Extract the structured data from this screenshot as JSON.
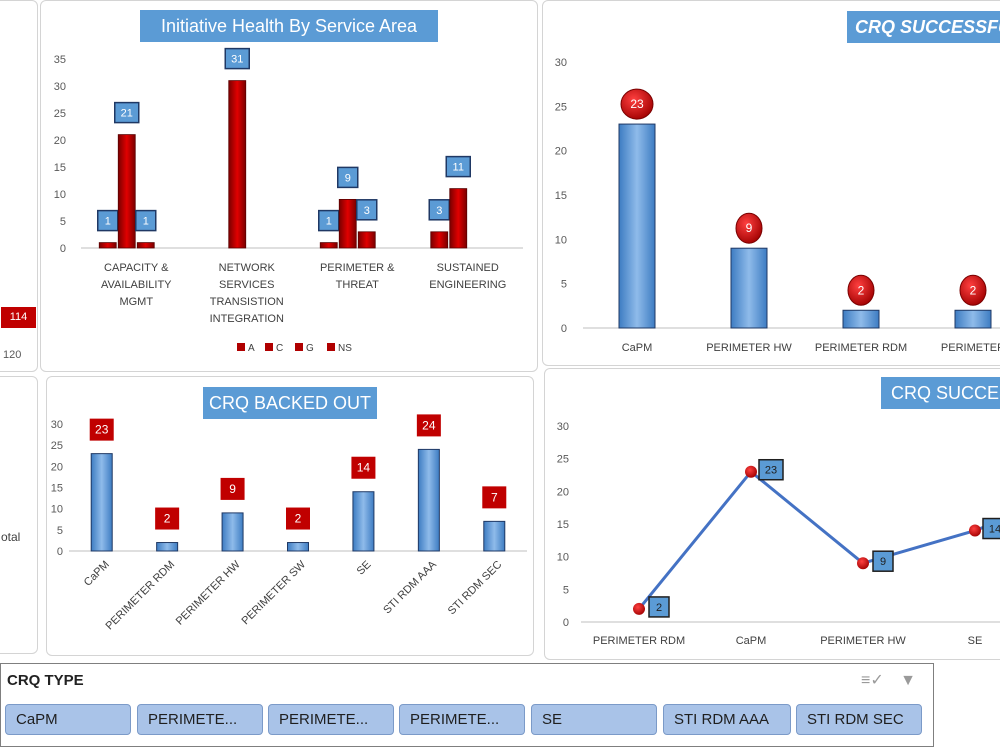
{
  "left_stub": {
    "badge_value": "114",
    "axis_tick": "120",
    "total_fragment": "otal"
  },
  "colors": {
    "title_blue": "#5b9bd5",
    "bar_blue": "#5b9bd5",
    "bar_red": "#c00000",
    "badge_red": "#c00000",
    "slicer_button": "#a9c3e8"
  },
  "slicer": {
    "header": "CRQ TYPE",
    "multi_select_icon": "multi-select-icon",
    "clear_filter_icon": "clear-filter-icon",
    "buttons": [
      "CaPM",
      "PERIMETE...",
      "PERIMETE...",
      "PERIMETE...",
      "SE",
      "STI RDM AAA",
      "STI RDM SEC"
    ]
  },
  "chart_data": [
    {
      "id": "health",
      "type": "bar",
      "title": "Initiative Health By Service Area",
      "categories": [
        "CAPACITY & AVAILABILITY MGMT",
        "NETWORK SERVICES TRANSISTION INTEGRATION",
        "PERIMETER & THREAT",
        "SUSTAINED ENGINEERING"
      ],
      "series": [
        {
          "name": "A",
          "values": [
            1,
            0,
            1,
            3
          ]
        },
        {
          "name": "C",
          "values": [
            21,
            31,
            9,
            11
          ]
        },
        {
          "name": "G",
          "values": [
            1,
            0,
            3,
            0
          ]
        },
        {
          "name": "NS",
          "values": [
            0,
            0,
            0,
            0
          ]
        }
      ],
      "ylim": [
        0,
        35
      ],
      "yticks": [
        0,
        5,
        10,
        15,
        20,
        25,
        30,
        35
      ],
      "legend": "bottom",
      "grid": false
    },
    {
      "id": "successful",
      "type": "bar",
      "title": "CRQ SUCCESSFU",
      "categories": [
        "CaPM",
        "PERIMETER HW",
        "PERIMETER RDM",
        "PERIMETER"
      ],
      "values": [
        23,
        9,
        2,
        2
      ],
      "ylim": [
        0,
        30
      ],
      "yticks": [
        0,
        5,
        10,
        15,
        20,
        25,
        30
      ],
      "grid": false
    },
    {
      "id": "backed_out",
      "type": "bar",
      "title": "CRQ BACKED OUT",
      "categories": [
        "CaPM",
        "PERIMETER RDM",
        "PERIMETER HW",
        "PERIMETER SW",
        "SE",
        "STI RDM AAA",
        "STI RDM SEC"
      ],
      "values": [
        23,
        2,
        9,
        2,
        14,
        24,
        7
      ],
      "ylim": [
        0,
        30
      ],
      "yticks": [
        0,
        5,
        10,
        15,
        20,
        25,
        30
      ],
      "grid": false
    },
    {
      "id": "success_line",
      "type": "line",
      "title": "CRQ SUCCES",
      "categories": [
        "PERIMETER RDM",
        "CaPM",
        "PERIMETER HW",
        "SE"
      ],
      "values": [
        2,
        23,
        9,
        14
      ],
      "ylim": [
        0,
        30
      ],
      "yticks": [
        0,
        5,
        10,
        15,
        20,
        25,
        30
      ],
      "grid": false
    }
  ]
}
